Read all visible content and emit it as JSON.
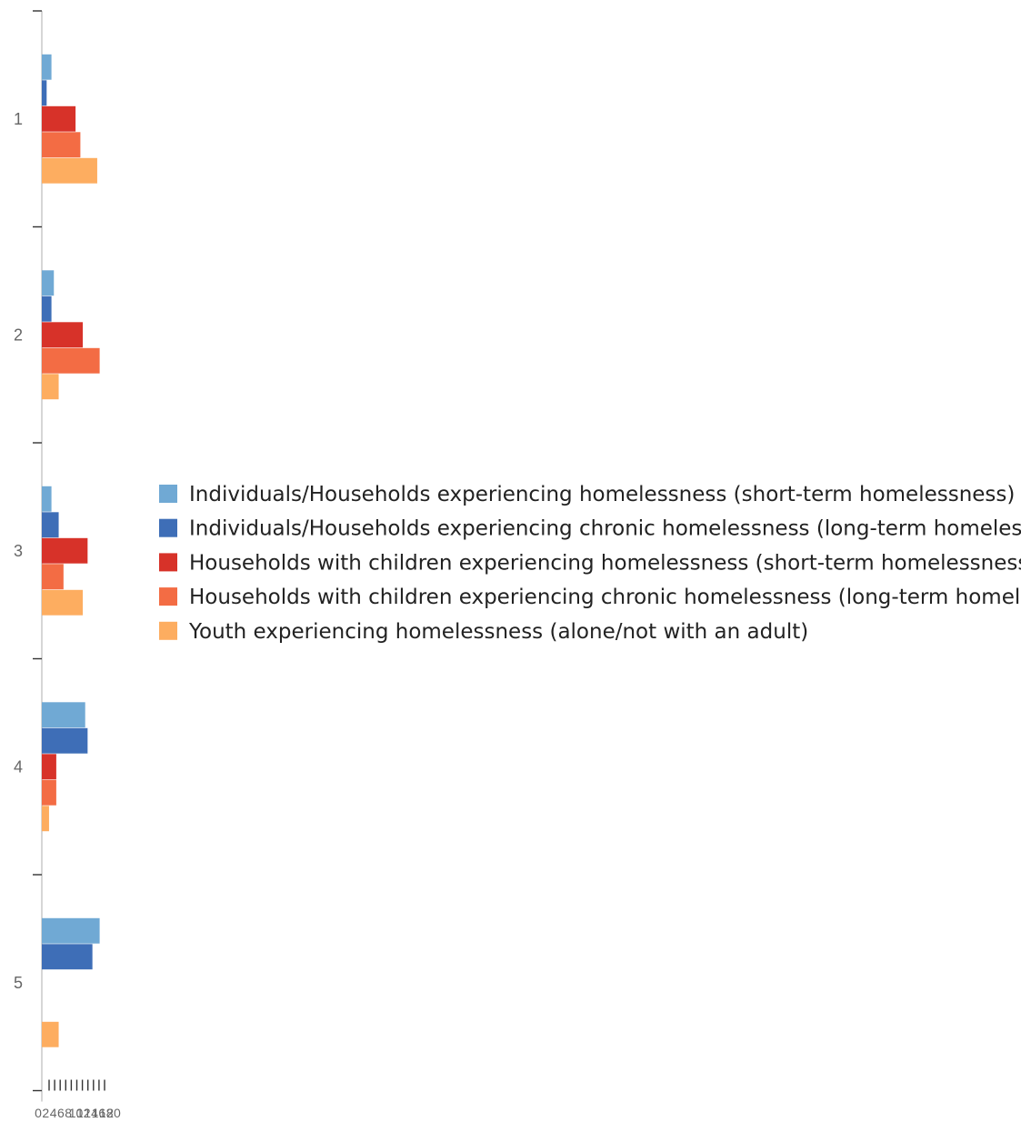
{
  "chart_data": {
    "type": "bar",
    "orientation": "horizontal",
    "categories": [
      "1",
      "2",
      "3",
      "4",
      "5"
    ],
    "series": [
      {
        "name": "Individuals/Households experiencing homelessness (short-term homelessness)",
        "color": "#70a9d4",
        "values": [
          2,
          2.5,
          2,
          9,
          12
        ]
      },
      {
        "name": "Individuals/Households experiencing chronic homelessness (long-term homeles...",
        "color": "#3e6eb7",
        "values": [
          1,
          2,
          3.5,
          9.5,
          10.5
        ]
      },
      {
        "name": "Households with children experiencing homelessness (short-term homelessness...",
        "color": "#d73229",
        "values": [
          7,
          8.5,
          9.5,
          3,
          0
        ]
      },
      {
        "name": "Households with children experiencing chronic homelessness (long-term homel...",
        "color": "#f36c44",
        "values": [
          8,
          12,
          4.5,
          3,
          0
        ]
      },
      {
        "name": "Youth experiencing homelessness (alone/not with an adult)",
        "color": "#fdad60",
        "values": [
          11.5,
          3.5,
          8.5,
          1.5,
          3.5
        ]
      }
    ],
    "x_ticks": [
      "0",
      "2",
      "4",
      "6",
      "8",
      "10",
      "12",
      "14",
      "16",
      "18",
      "20"
    ],
    "xlim": [
      0,
      20
    ],
    "grid": false,
    "legend_position": "right"
  }
}
